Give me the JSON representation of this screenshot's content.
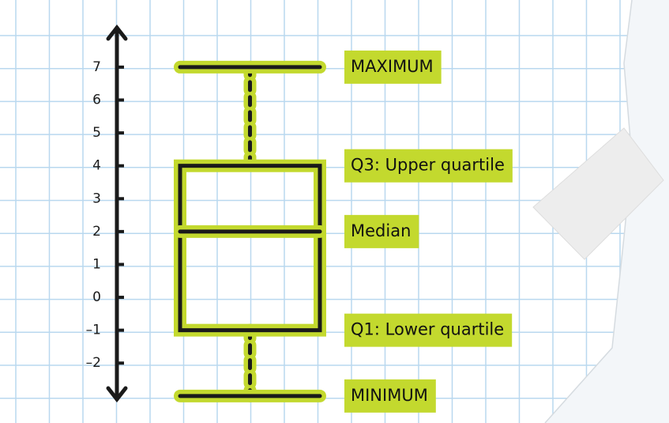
{
  "chart_data": {
    "type": "box",
    "box": {
      "min": -3,
      "q1": -1,
      "median": 2,
      "q3": 4,
      "max": 7
    },
    "labels": {
      "max": "MAXIMUM",
      "q3": "Q3: Upper quartile",
      "median": "Median",
      "q1": "Q1: Lower quartile",
      "min": "MINIMUM"
    },
    "ylim": [
      -3.1,
      8.2
    ],
    "yticks": [
      7,
      6,
      5,
      4,
      3,
      2,
      1,
      0,
      {
        "value": -1,
        "label": "–1"
      },
      {
        "value": -2,
        "label": "–2"
      }
    ],
    "color": "#c3d92e"
  }
}
